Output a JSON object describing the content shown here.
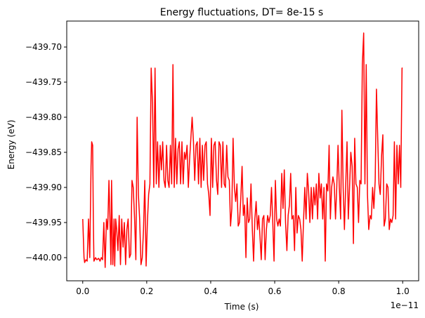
{
  "chart_data": {
    "type": "line",
    "title": "Energy fluctuations, DT= 8e-15 s",
    "xlabel": "Time (s)",
    "ylabel": "Energy (eV)",
    "x_offset_label": "1e−11",
    "xlim": [
      -0.05,
      1.05
    ],
    "ylim": [
      -440.033,
      -439.663
    ],
    "x_ticks": [
      0.0,
      0.2,
      0.4,
      0.6,
      0.8,
      1.0
    ],
    "x_tick_labels": [
      "0.0",
      "0.2",
      "0.4",
      "0.6",
      "0.8",
      "1.0"
    ],
    "y_ticks": [
      -440.0,
      -439.95,
      -439.9,
      -439.85,
      -439.8,
      -439.75,
      -439.7
    ],
    "y_tick_labels": [
      "−440.00",
      "−439.95",
      "−439.90",
      "−439.85",
      "−439.80",
      "−439.75",
      "−439.70"
    ],
    "grid": false,
    "series": [
      {
        "color": "#ff0000",
        "x": [
          0.0,
          0.004,
          0.006,
          0.01,
          0.014,
          0.018,
          0.022,
          0.026,
          0.028,
          0.031,
          0.033,
          0.035,
          0.038,
          0.04,
          0.044,
          0.05,
          0.054,
          0.058,
          0.062,
          0.066,
          0.07,
          0.074,
          0.078,
          0.082,
          0.085,
          0.088,
          0.09,
          0.094,
          0.098,
          0.1,
          0.103,
          0.106,
          0.11,
          0.114,
          0.118,
          0.122,
          0.126,
          0.13,
          0.134,
          0.138,
          0.142,
          0.146,
          0.15,
          0.154,
          0.158,
          0.162,
          0.166,
          0.17,
          0.174,
          0.178,
          0.182,
          0.186,
          0.19,
          0.194,
          0.198,
          0.202,
          0.206,
          0.21,
          0.214,
          0.218,
          0.222,
          0.226,
          0.23,
          0.234,
          0.238,
          0.242,
          0.246,
          0.25,
          0.254,
          0.258,
          0.262,
          0.266,
          0.27,
          0.274,
          0.278,
          0.282,
          0.286,
          0.29,
          0.294,
          0.298,
          0.302,
          0.306,
          0.31,
          0.314,
          0.318,
          0.322,
          0.326,
          0.33,
          0.334,
          0.338,
          0.342,
          0.346,
          0.35,
          0.354,
          0.358,
          0.362,
          0.366,
          0.37,
          0.374,
          0.378,
          0.382,
          0.386,
          0.39,
          0.394,
          0.398,
          0.402,
          0.406,
          0.41,
          0.414,
          0.418,
          0.422,
          0.426,
          0.43,
          0.434,
          0.438,
          0.442,
          0.446,
          0.45,
          0.454,
          0.458,
          0.462,
          0.466,
          0.47,
          0.474,
          0.478,
          0.482,
          0.486,
          0.49,
          0.494,
          0.498,
          0.502,
          0.506,
          0.51,
          0.514,
          0.518,
          0.522,
          0.526,
          0.53,
          0.534,
          0.538,
          0.542,
          0.546,
          0.55,
          0.554,
          0.558,
          0.562,
          0.566,
          0.57,
          0.574,
          0.578,
          0.582,
          0.586,
          0.59,
          0.594,
          0.598,
          0.602,
          0.606,
          0.61,
          0.614,
          0.618,
          0.622,
          0.626,
          0.63,
          0.634,
          0.638,
          0.642,
          0.646,
          0.65,
          0.654,
          0.658,
          0.662,
          0.666,
          0.67,
          0.674,
          0.678,
          0.682,
          0.686,
          0.69,
          0.694,
          0.698,
          0.702,
          0.706,
          0.71,
          0.714,
          0.718,
          0.722,
          0.726,
          0.73,
          0.734,
          0.738,
          0.742,
          0.746,
          0.75,
          0.754,
          0.758,
          0.762,
          0.766,
          0.77,
          0.774,
          0.778,
          0.782,
          0.786,
          0.79,
          0.794,
          0.798,
          0.802,
          0.806,
          0.81,
          0.814,
          0.818,
          0.822,
          0.826,
          0.83,
          0.834,
          0.838,
          0.842,
          0.846,
          0.85,
          0.854,
          0.858,
          0.862,
          0.866,
          0.87,
          0.874,
          0.878,
          0.882,
          0.886,
          0.89,
          0.894,
          0.898,
          0.902,
          0.906,
          0.91,
          0.914,
          0.918,
          0.922,
          0.926,
          0.93,
          0.934,
          0.938,
          0.942,
          0.946,
          0.95,
          0.954,
          0.958,
          0.962,
          0.966,
          0.97,
          0.974,
          0.978,
          0.982,
          0.986,
          0.99,
          0.994,
          0.998,
          1.0
        ],
        "y": [
          -439.945,
          -440.0,
          -440.007,
          -440.003,
          -440.005,
          -439.945,
          -440.0,
          -439.87,
          -439.835,
          -439.84,
          -439.94,
          -440.005,
          -440.002,
          -440.0,
          -440.003,
          -440.001,
          -440.005,
          -440.0,
          -440.003,
          -439.95,
          -440.014,
          -439.945,
          -439.96,
          -439.89,
          -439.945,
          -440.01,
          -439.89,
          -440.01,
          -439.945,
          -440.012,
          -439.945,
          -439.96,
          -439.99,
          -439.94,
          -440.01,
          -439.945,
          -439.985,
          -439.95,
          -440.01,
          -439.96,
          -439.945,
          -440.0,
          -439.995,
          -439.89,
          -439.9,
          -439.945,
          -440.003,
          -439.8,
          -439.91,
          -439.945,
          -440.01,
          -440.0,
          -439.96,
          -439.89,
          -440.012,
          -439.95,
          -439.91,
          -439.895,
          -439.73,
          -439.78,
          -439.9,
          -439.73,
          -439.895,
          -439.835,
          -439.9,
          -439.84,
          -439.875,
          -439.835,
          -439.89,
          -439.9,
          -439.84,
          -439.89,
          -439.9,
          -439.84,
          -439.895,
          -439.725,
          -439.9,
          -439.83,
          -439.895,
          -439.845,
          -439.835,
          -439.895,
          -439.835,
          -439.895,
          -439.85,
          -439.86,
          -439.84,
          -439.9,
          -439.86,
          -439.83,
          -439.8,
          -439.835,
          -439.89,
          -439.84,
          -439.835,
          -439.895,
          -439.83,
          -439.9,
          -439.84,
          -439.89,
          -439.84,
          -439.835,
          -439.895,
          -439.91,
          -439.94,
          -439.83,
          -439.9,
          -439.84,
          -439.835,
          -439.89,
          -439.91,
          -439.835,
          -439.84,
          -439.9,
          -439.835,
          -439.895,
          -439.9,
          -439.84,
          -439.885,
          -439.89,
          -439.955,
          -439.93,
          -439.83,
          -439.9,
          -439.92,
          -439.895,
          -439.955,
          -439.95,
          -439.915,
          -439.87,
          -439.94,
          -439.925,
          -440.0,
          -439.915,
          -439.95,
          -439.945,
          -439.895,
          -439.96,
          -440.005,
          -439.945,
          -439.92,
          -439.96,
          -439.94,
          -439.97,
          -440.003,
          -439.945,
          -439.94,
          -440.003,
          -439.96,
          -439.94,
          -439.95,
          -439.94,
          -439.9,
          -439.95,
          -440.005,
          -439.89,
          -439.945,
          -439.955,
          -439.945,
          -439.955,
          -439.88,
          -439.93,
          -439.875,
          -439.95,
          -439.99,
          -439.94,
          -439.925,
          -439.88,
          -439.945,
          -439.94,
          -439.99,
          -439.9,
          -439.965,
          -439.94,
          -439.945,
          -439.96,
          -440.005,
          -439.95,
          -439.9,
          -439.945,
          -439.88,
          -439.905,
          -439.95,
          -439.9,
          -439.945,
          -439.9,
          -439.925,
          -439.895,
          -439.945,
          -439.88,
          -439.915,
          -439.895,
          -439.945,
          -439.9,
          -440.005,
          -439.895,
          -439.905,
          -439.84,
          -439.945,
          -439.9,
          -439.885,
          -439.895,
          -439.945,
          -439.9,
          -439.84,
          -439.9,
          -439.945,
          -439.79,
          -439.9,
          -439.96,
          -439.895,
          -439.835,
          -439.945,
          -439.9,
          -439.85,
          -439.87,
          -439.98,
          -439.83,
          -439.895,
          -439.9,
          -439.95,
          -439.89,
          -439.895,
          -439.725,
          -439.68,
          -439.895,
          -439.725,
          -439.91,
          -439.96,
          -439.94,
          -439.945,
          -439.9,
          -439.93,
          -439.89,
          -439.76,
          -439.83,
          -439.895,
          -439.91,
          -439.855,
          -439.825,
          -439.955,
          -439.945,
          -439.895,
          -439.9,
          -439.96,
          -439.945,
          -439.95,
          -439.94,
          -439.835,
          -439.945,
          -439.84,
          -439.895,
          -439.84,
          -439.9,
          -439.73,
          -439.73
        ]
      }
    ]
  }
}
